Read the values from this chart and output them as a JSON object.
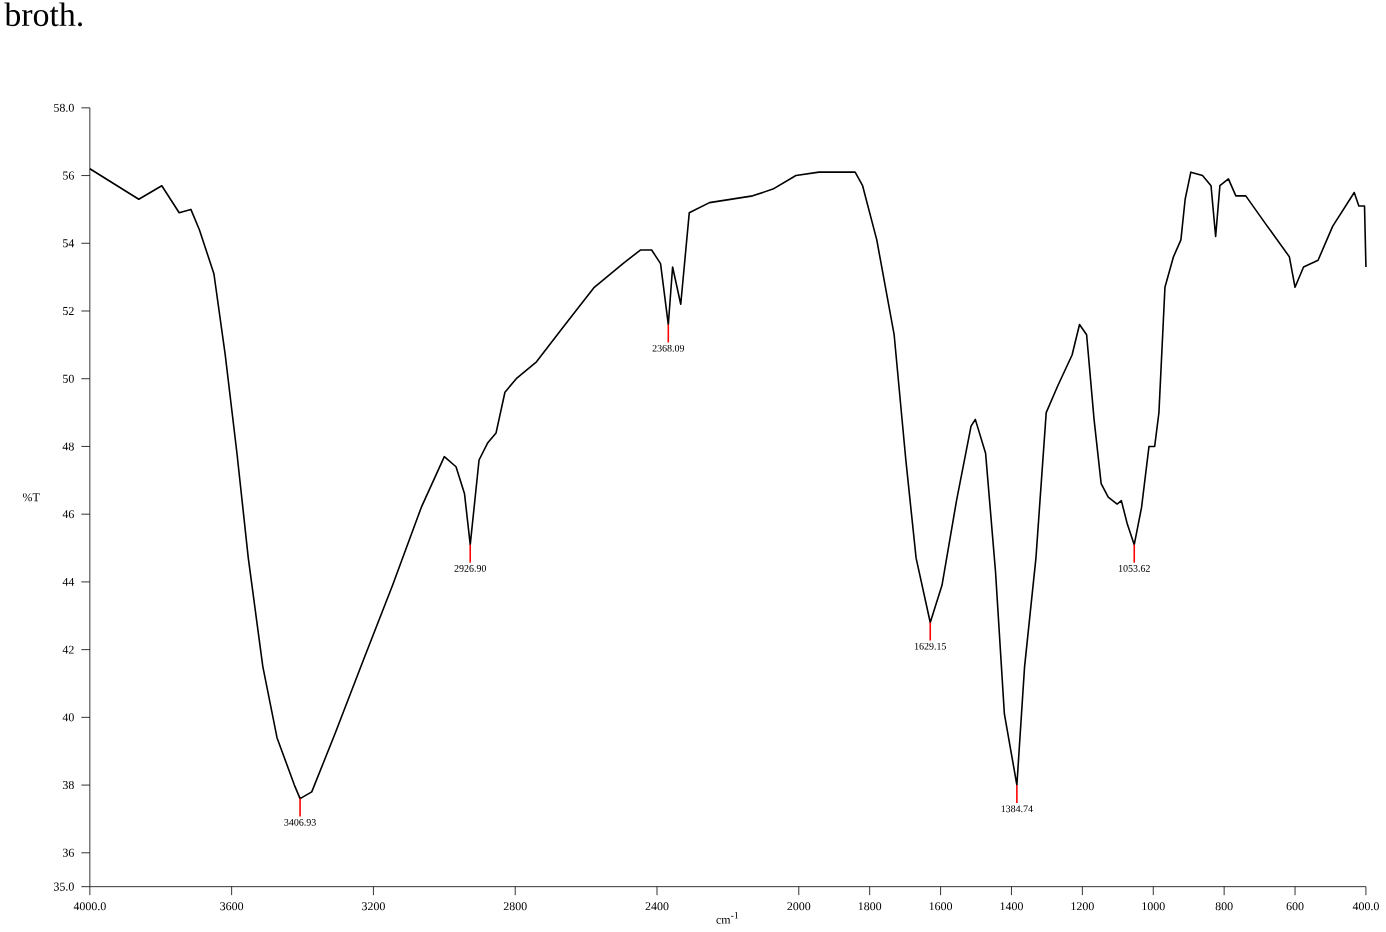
{
  "chart_data": {
    "type": "line",
    "xlabel": "cm$^{-1}$",
    "ylabel": "%T",
    "xlim": [
      4000,
      400
    ],
    "ylim": [
      35,
      58
    ],
    "xticks": [
      {
        "value": 4000,
        "label": "4000.0"
      },
      3600,
      3200,
      2800,
      2400,
      2000,
      1800,
      1600,
      1400,
      1200,
      1000,
      800,
      600,
      {
        "value": 400,
        "label": "400.0"
      }
    ],
    "yticks": [
      {
        "value": 35,
        "label": "35.0"
      },
      36,
      38,
      40,
      42,
      44,
      46,
      48,
      50,
      52,
      54,
      56,
      {
        "value": 58,
        "label": "58.0"
      }
    ],
    "grid": false,
    "marker": "none",
    "line_style": "solid",
    "series": [
      {
        "color": "#000000",
        "x": [
          4000,
          3862,
          3797,
          3748,
          3715,
          3691,
          3650,
          3618,
          3585,
          3553,
          3512,
          3472,
          3423,
          3406.93,
          3374,
          3309,
          3228,
          3146,
          3065,
          3000,
          2967,
          2943,
          2926.9,
          2902,
          2878,
          2854,
          2829,
          2797,
          2740,
          2659,
          2577,
          2496,
          2447,
          2415,
          2390,
          2368.09,
          2356,
          2333,
          2309,
          2252,
          2130,
          2073,
          2008,
          1943,
          1841,
          1820,
          1780,
          1731,
          1698,
          1669,
          1629.15,
          1596,
          1555,
          1514,
          1502,
          1473,
          1445,
          1420,
          1384.74,
          1363,
          1331,
          1302,
          1269,
          1229,
          1208,
          1188,
          1167,
          1147,
          1127,
          1102,
          1090,
          1073,
          1053.62,
          1033,
          1012,
          996,
          984,
          967,
          943,
          922,
          910,
          894,
          861,
          837,
          824,
          812,
          788,
          767,
          739,
          678,
          616,
          600,
          576,
          535,
          494,
          433,
          420,
          404,
          400
        ],
        "values": [
          56.2,
          55.3,
          55.7,
          54.9,
          55.0,
          54.4,
          53.1,
          50.7,
          47.8,
          44.7,
          41.5,
          39.4,
          38.0,
          37.6,
          37.8,
          39.5,
          41.7,
          43.9,
          46.2,
          47.7,
          47.4,
          46.6,
          45.1,
          47.6,
          48.1,
          48.4,
          49.6,
          50.0,
          50.5,
          51.6,
          52.7,
          53.4,
          53.8,
          53.8,
          53.4,
          51.6,
          53.3,
          52.2,
          54.9,
          55.2,
          55.4,
          55.6,
          56.0,
          56.1,
          56.1,
          55.7,
          54.1,
          51.3,
          47.6,
          44.7,
          42.8,
          43.9,
          46.4,
          48.6,
          48.8,
          47.8,
          44.3,
          40.1,
          38.0,
          41.5,
          44.7,
          49.0,
          49.8,
          50.7,
          51.6,
          51.3,
          48.8,
          46.9,
          46.5,
          46.3,
          46.4,
          45.7,
          45.1,
          46.2,
          48.0,
          48.0,
          49.0,
          52.7,
          53.6,
          54.1,
          55.3,
          56.1,
          56.0,
          55.7,
          54.2,
          55.7,
          55.9,
          55.4,
          55.4,
          54.5,
          53.6,
          52.7,
          53.3,
          53.5,
          54.5,
          55.5,
          55.1,
          55.1,
          53.3
        ]
      }
    ],
    "annotations": [
      "broth.",
      {
        "text": "3406.93",
        "x": 3406.93,
        "y": 37.6
      },
      {
        "text": "2926.90",
        "x": 2926.9,
        "y": 45.1
      },
      {
        "text": "2368.09",
        "x": 2368.09,
        "y": 51.6
      },
      {
        "text": "1629.15",
        "x": 1629.15,
        "y": 42.8
      },
      {
        "text": "1384.74",
        "x": 1384.74,
        "y": 38.0
      },
      {
        "text": "1053.62",
        "x": 1053.62,
        "y": 45.1
      }
    ]
  }
}
